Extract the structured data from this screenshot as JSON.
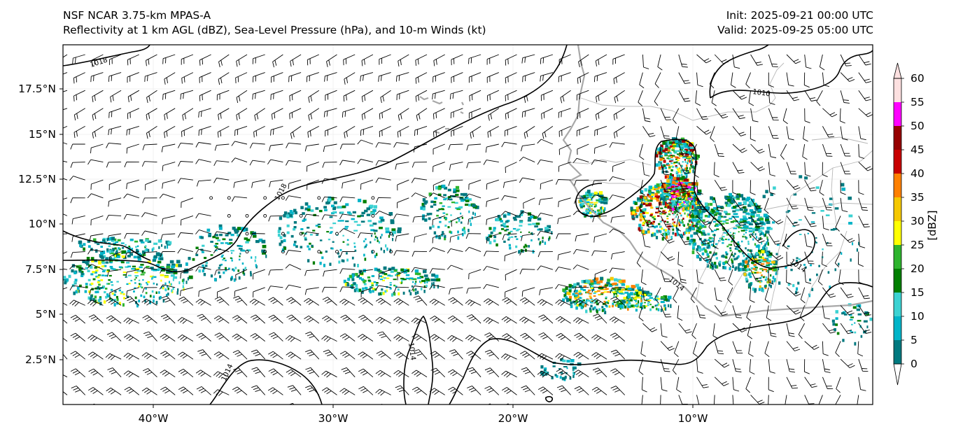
{
  "header": {
    "model": "NSF NCAR 3.75-km MPAS-A",
    "fields": "Reflectivity at 1 km AGL (dBZ), Sea-Level Pressure (hPa), and 10-m Winds (kt)",
    "init": "Init: 2025-09-21 00:00 UTC",
    "valid": "Valid: 2025-09-25 05:00 UTC"
  },
  "axes": {
    "lat_labels": [
      "17.5°N",
      "15°N",
      "12.5°N",
      "10°N",
      "7.5°N",
      "5°N",
      "2.5°N"
    ],
    "lon_labels": [
      "40°W",
      "30°W",
      "20°W",
      "10°W"
    ]
  },
  "isobars": {
    "labels": [
      "1018",
      "1018",
      "1014",
      "1014",
      "1014",
      "1014",
      "1010"
    ]
  },
  "colorbar": {
    "ticks": [
      "0",
      "5",
      "10",
      "15",
      "20",
      "25",
      "30",
      "35",
      "40",
      "45",
      "50",
      "55",
      "60"
    ],
    "label": "[dBZ]",
    "colors": [
      "#00797f",
      "#00b4c8",
      "#3cd2d2",
      "#007f00",
      "#2db42d",
      "#ffff00",
      "#f5c800",
      "#ff8000",
      "#c80000",
      "#960000",
      "#ff00ff",
      "#fde0e0"
    ]
  },
  "styles": {
    "coastline_color": "#a8a8a8",
    "border_color": "#b8b8b8",
    "isobar_color": "#000000",
    "barb_color": "#000000"
  }
}
